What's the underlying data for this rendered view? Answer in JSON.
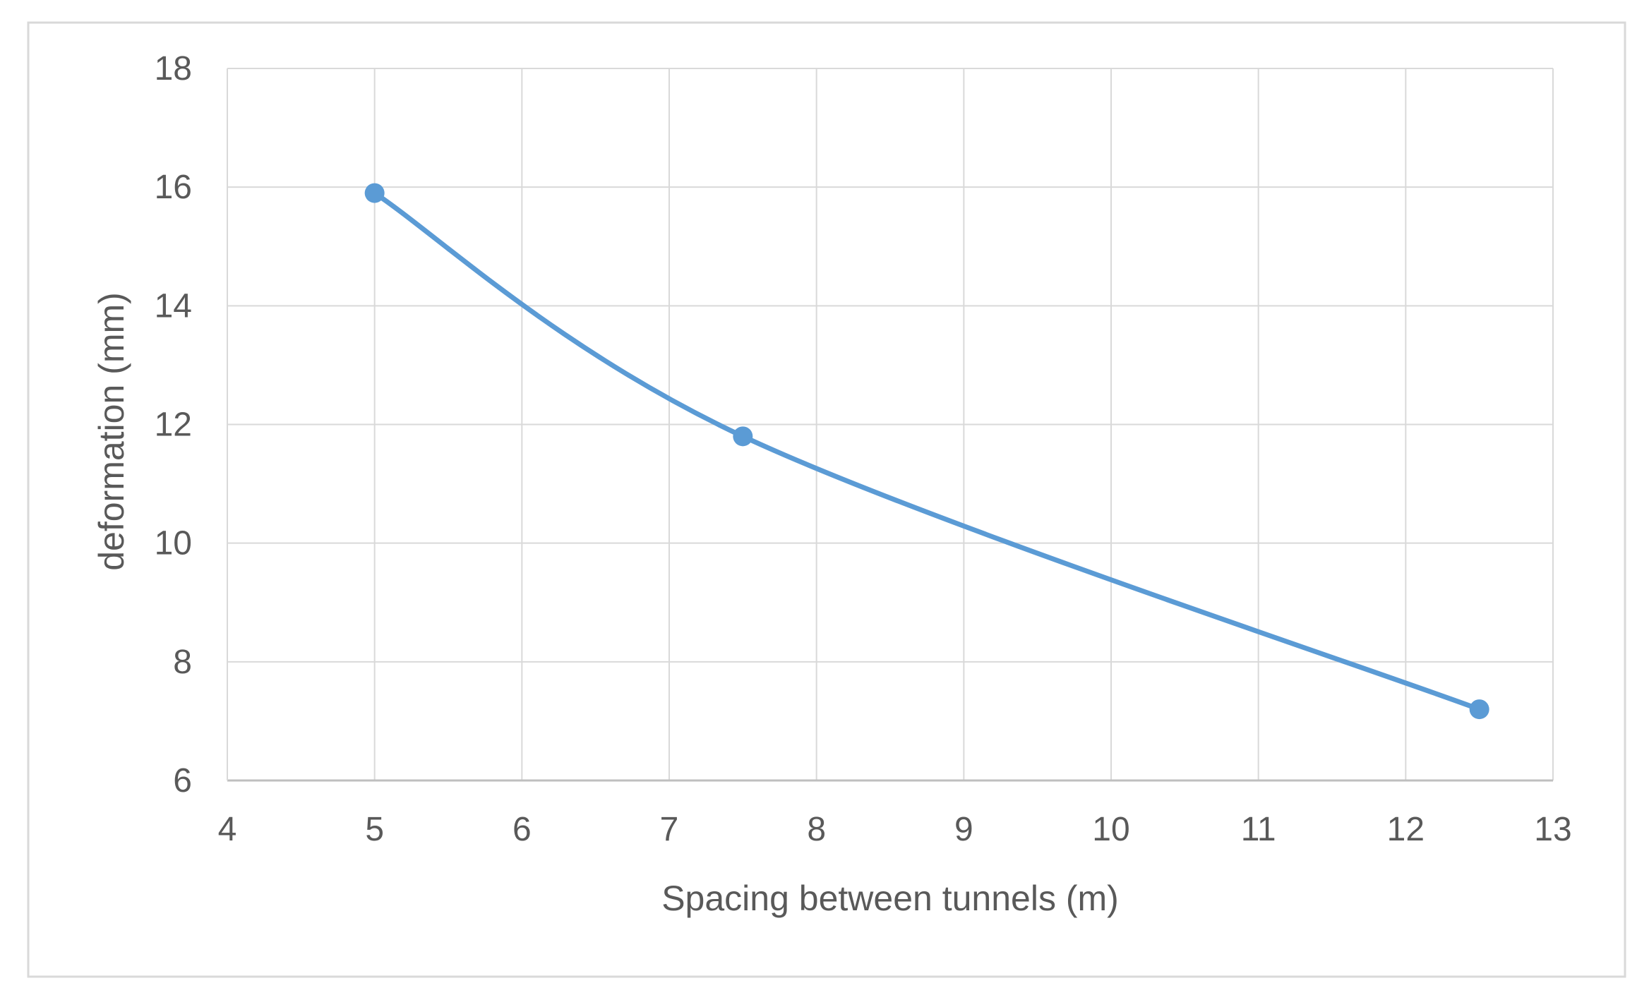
{
  "chart_data": {
    "type": "line",
    "smooth": true,
    "title": "",
    "xlabel": "Spacing between tunnels (m)",
    "ylabel": "deformation (mm)",
    "xlim": [
      4,
      13
    ],
    "ylim": [
      6,
      18
    ],
    "x_ticks": [
      "4",
      "5",
      "6",
      "7",
      "8",
      "9",
      "10",
      "11",
      "12",
      "13"
    ],
    "y_ticks": [
      "6",
      "8",
      "10",
      "12",
      "14",
      "16",
      "18"
    ],
    "grid": true,
    "legend": "none",
    "series": [
      {
        "color": "#5b9bd5",
        "points": [
          {
            "x": 5,
            "y": 15.9
          },
          {
            "x": 7.5,
            "y": 11.8
          },
          {
            "x": 12.5,
            "y": 7.2
          }
        ]
      }
    ]
  }
}
